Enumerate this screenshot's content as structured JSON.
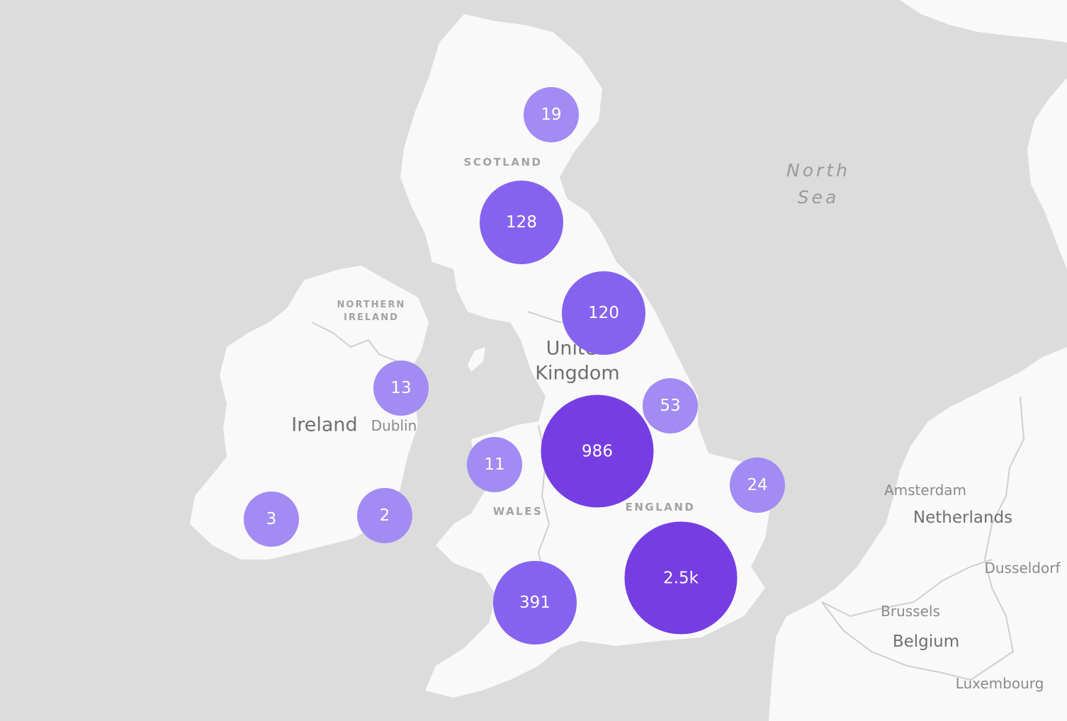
{
  "map": {
    "colors": {
      "sea": "#dcdcdc",
      "land": "#f9f9f9",
      "border": "#cfcfcf",
      "cluster_small": "#a28bf2",
      "cluster_medium": "#8663ef",
      "cluster_large": "#763de3"
    },
    "labels": {
      "scotland": "SCOTLAND",
      "northern_ireland_1": "NORTHERN",
      "northern_ireland_2": "IRELAND",
      "uk_1": "United",
      "uk_2": "Kingdom",
      "ireland": "Ireland",
      "dublin": "Dublin",
      "wales": "WALES",
      "england": "ENGLAND",
      "north_sea_1": "North",
      "north_sea_2": "Sea",
      "amsterdam": "Amsterdam",
      "netherlands": "Netherlands",
      "dusseldorf": "Dusseldorf",
      "brussels": "Brussels",
      "belgium": "Belgium",
      "luxembourg": "Luxembourg"
    },
    "clusters": [
      {
        "id": "north-scotland",
        "count": "19",
        "size": "small"
      },
      {
        "id": "central-scotland",
        "count": "128",
        "size": "medium"
      },
      {
        "id": "north-england",
        "count": "120",
        "size": "medium"
      },
      {
        "id": "dublin-area",
        "count": "13",
        "size": "small"
      },
      {
        "id": "yorkshire",
        "count": "53",
        "size": "small"
      },
      {
        "id": "north-wales",
        "count": "11",
        "size": "small"
      },
      {
        "id": "midlands",
        "count": "986",
        "size": "large"
      },
      {
        "id": "east-anglia",
        "count": "24",
        "size": "small"
      },
      {
        "id": "southwest-ireland",
        "count": "3",
        "size": "small"
      },
      {
        "id": "southeast-ireland",
        "count": "2",
        "size": "small"
      },
      {
        "id": "southwest-england",
        "count": "391",
        "size": "medium"
      },
      {
        "id": "london",
        "count": "2.5k",
        "size": "large"
      }
    ]
  }
}
